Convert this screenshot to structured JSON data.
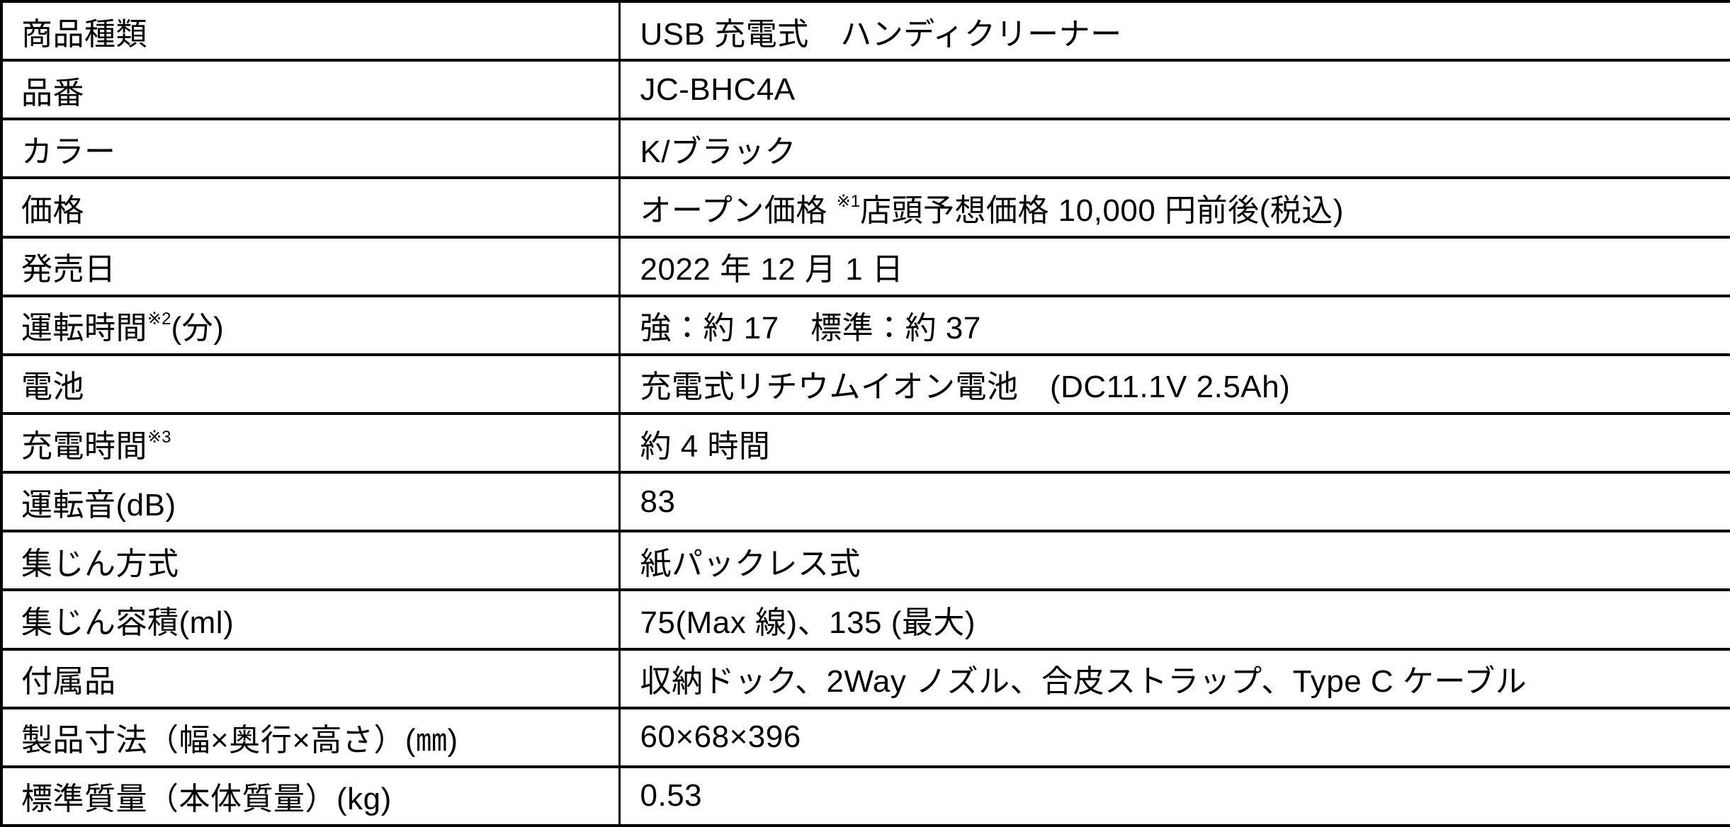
{
  "document": {
    "type": "product-spec-table",
    "colors": {
      "background": "#ffffff",
      "border": "#000000",
      "text": "#000000"
    }
  },
  "table": {
    "rows": [
      {
        "name": "product-type",
        "label": [
          {
            "t": "商品種類"
          }
        ],
        "value": [
          {
            "t": "USB 充電式　ハンディクリーナー"
          }
        ]
      },
      {
        "name": "model-number",
        "label": [
          {
            "t": "品番"
          }
        ],
        "value": [
          {
            "t": "JC-BHC4A"
          }
        ]
      },
      {
        "name": "color",
        "label": [
          {
            "t": "カラー"
          }
        ],
        "value": [
          {
            "t": "K/ブラック"
          }
        ]
      },
      {
        "name": "price",
        "label": [
          {
            "t": "価格"
          }
        ],
        "value": [
          {
            "t": "オープン価格 "
          },
          {
            "t": "※1",
            "sup": true
          },
          {
            "t": "店頭予想価格 10,000 円前後(税込)"
          }
        ]
      },
      {
        "name": "release-date",
        "label": [
          {
            "t": "発売日"
          }
        ],
        "value": [
          {
            "t": "2022 年 12 月 1 日"
          }
        ]
      },
      {
        "name": "run-time-minutes",
        "label": [
          {
            "t": "運転時間"
          },
          {
            "t": "※2",
            "sup": true
          },
          {
            "t": "(分)"
          }
        ],
        "value": [
          {
            "t": "強：約 17　標準：約 37"
          }
        ]
      },
      {
        "name": "battery",
        "label": [
          {
            "t": "電池"
          }
        ],
        "value": [
          {
            "t": "充電式リチウムイオン電池　(DC11.1V 2.5Ah)"
          }
        ]
      },
      {
        "name": "charge-time",
        "label": [
          {
            "t": "充電時間"
          },
          {
            "t": "※3",
            "sup": true
          }
        ],
        "value": [
          {
            "t": "約 4 時間"
          }
        ]
      },
      {
        "name": "operating-noise-db",
        "label": [
          {
            "t": "運転音(dB)"
          }
        ],
        "value": [
          {
            "t": "83"
          }
        ]
      },
      {
        "name": "dust-collection-method",
        "label": [
          {
            "t": "集じん方式"
          }
        ],
        "value": [
          {
            "t": "紙パックレス式"
          }
        ]
      },
      {
        "name": "dust-capacity-ml",
        "label": [
          {
            "t": "集じん容積(ml)"
          }
        ],
        "value": [
          {
            "t": "75(Max 線)、135 (最大)"
          }
        ]
      },
      {
        "name": "accessories",
        "label": [
          {
            "t": "付属品"
          }
        ],
        "value": [
          {
            "t": "収納ドック、2Way ノズル、合皮ストラップ、Type C ケーブル"
          }
        ]
      },
      {
        "name": "product-dimensions-mm",
        "label": [
          {
            "t": "製品寸法（幅×奥行×高さ）(㎜)"
          }
        ],
        "value": [
          {
            "t": "60×68×396"
          }
        ]
      },
      {
        "name": "standard-weight-kg",
        "label": [
          {
            "t": "標準質量（本体質量）(kg)"
          }
        ],
        "value": [
          {
            "t": "0.53"
          }
        ]
      }
    ]
  }
}
